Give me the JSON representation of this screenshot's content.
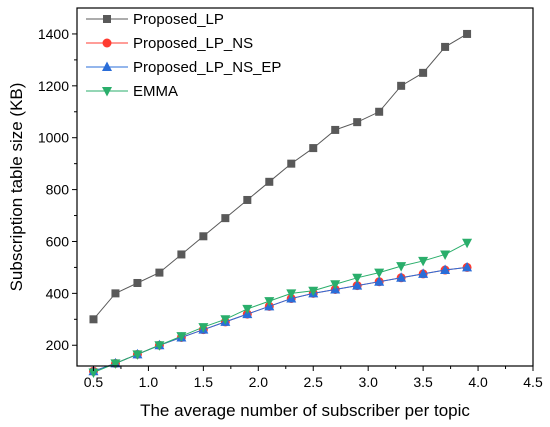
{
  "chart_data": {
    "type": "line",
    "xlabel": "The average number of subscriber per topic",
    "ylabel": "Subscription table size (KB)",
    "xlim": [
      0.35,
      4.5
    ],
    "ylim": [
      120,
      1500
    ],
    "xticks": [
      "0.5",
      "1.0",
      "1.5",
      "2.0",
      "2.5",
      "3.0",
      "3.5",
      "4.0",
      "4.5"
    ],
    "yticks": [
      "200",
      "400",
      "600",
      "800",
      "1000",
      "1200",
      "1400"
    ],
    "legend_position": "top-left",
    "series": [
      {
        "name": "Proposed_LP",
        "marker": "square",
        "color": "#595959",
        "x": [
          0.5,
          0.7,
          0.9,
          1.1,
          1.3,
          1.5,
          1.7,
          1.9,
          2.1,
          2.3,
          2.5,
          2.7,
          2.9,
          3.1,
          3.3,
          3.5,
          3.7,
          3.9
        ],
        "values": [
          300,
          400,
          440,
          480,
          550,
          620,
          690,
          760,
          830,
          900,
          960,
          1030,
          1060,
          1100,
          1200,
          1250,
          1350,
          1400
        ]
      },
      {
        "name": "Proposed_LP_NS",
        "marker": "circle",
        "color": "#ff3b30",
        "x": [
          0.5,
          0.7,
          0.9,
          1.1,
          1.3,
          1.5,
          1.7,
          1.9,
          2.1,
          2.3,
          2.5,
          2.7,
          2.9,
          3.1,
          3.3,
          3.5,
          3.7,
          3.9
        ],
        "values": [
          100,
          130,
          165,
          200,
          230,
          260,
          290,
          320,
          350,
          380,
          400,
          415,
          430,
          445,
          460,
          475,
          490,
          500
        ]
      },
      {
        "name": "Proposed_LP_NS_EP",
        "marker": "triangle-up",
        "color": "#2a6dd8",
        "x": [
          0.5,
          0.7,
          0.9,
          1.1,
          1.3,
          1.5,
          1.7,
          1.9,
          2.1,
          2.3,
          2.5,
          2.7,
          2.9,
          3.1,
          3.3,
          3.5,
          3.7,
          3.9
        ],
        "values": [
          100,
          130,
          165,
          200,
          230,
          260,
          290,
          320,
          350,
          380,
          400,
          415,
          430,
          445,
          460,
          475,
          490,
          500
        ]
      },
      {
        "name": "EMMA",
        "marker": "triangle-down",
        "color": "#2aae6b",
        "x": [
          0.5,
          0.7,
          0.9,
          1.1,
          1.3,
          1.5,
          1.7,
          1.9,
          2.1,
          2.3,
          2.5,
          2.7,
          2.9,
          3.1,
          3.3,
          3.5,
          3.7,
          3.9
        ],
        "values": [
          95,
          130,
          165,
          200,
          235,
          270,
          300,
          340,
          370,
          400,
          410,
          435,
          460,
          480,
          505,
          525,
          550,
          595
        ]
      }
    ]
  }
}
